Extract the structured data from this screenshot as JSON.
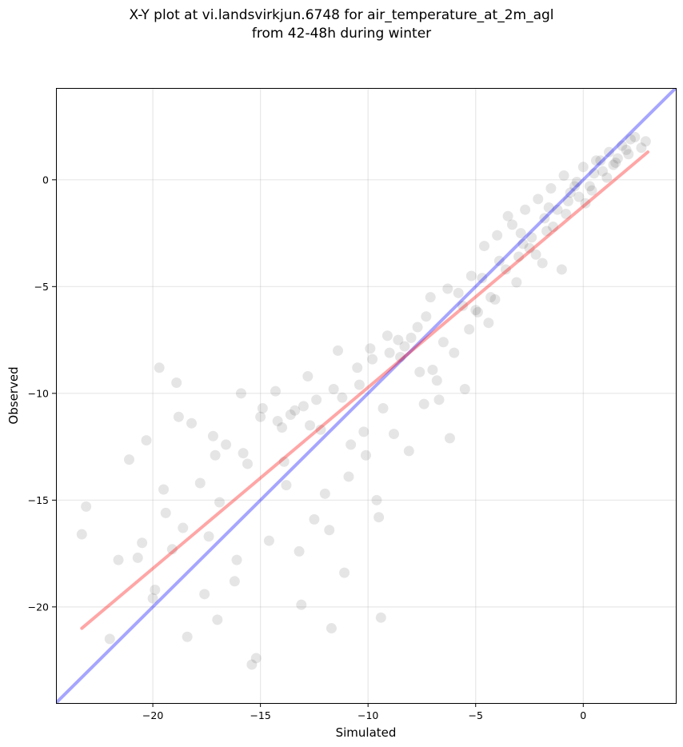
{
  "chart_data": {
    "type": "scatter",
    "title_line1": "X-Y plot at vi.landsvirkjun.6748 for air_temperature_at_2m_agl",
    "title_line2": "from 42-48h during winter",
    "xlabel": "Simulated",
    "ylabel": "Observed",
    "xlim": [
      -24.5,
      4.3
    ],
    "ylim": [
      -24.5,
      4.3
    ],
    "x_ticks": [
      -20,
      -15,
      -10,
      -5,
      0
    ],
    "y_ticks": [
      -20,
      -15,
      -10,
      -5,
      0
    ],
    "x_tick_labels": [
      "−20",
      "−15",
      "−10",
      "−5",
      "0"
    ],
    "y_tick_labels": [
      "−20",
      "−15",
      "−10",
      "−5",
      "0"
    ],
    "grid": true,
    "point_color": "#000000",
    "point_alpha": 0.1,
    "lines": [
      {
        "kind": "identity",
        "color": "#0000ff",
        "alpha": 0.35,
        "x": [
          -24.5,
          4.3
        ],
        "y": [
          -24.5,
          4.3
        ]
      },
      {
        "kind": "regression",
        "color": "#ff0000",
        "alpha": 0.35,
        "x": [
          -23.3,
          3.0
        ],
        "y": [
          -21.0,
          1.3
        ]
      }
    ],
    "x": [
      -23.3,
      -23.1,
      -21.6,
      -21.1,
      -20.7,
      -20.3,
      -19.9,
      -19.7,
      -19.4,
      -19.1,
      -18.9,
      -18.6,
      -18.2,
      -17.8,
      -17.6,
      -17.2,
      -16.9,
      -16.6,
      -16.2,
      -15.9,
      -15.6,
      -15.2,
      -14.9,
      -14.6,
      -14.3,
      -13.9,
      -13.6,
      -13.2,
      -12.8,
      -12.5,
      -12.2,
      -11.8,
      -11.4,
      -11.1,
      -10.8,
      -10.4,
      -10.1,
      -9.8,
      -9.5,
      -9.1,
      -8.8,
      -8.5,
      -8.1,
      -7.7,
      -7.4,
      -7.1,
      -6.8,
      -6.5,
      -6.2,
      -5.8,
      -5.5,
      -5.2,
      -4.9,
      -4.6,
      -4.3,
      -4.0,
      -3.6,
      -3.3,
      -3.0,
      -2.7,
      -2.4,
      -2.1,
      -1.8,
      -1.5,
      -1.2,
      -0.9,
      -0.6,
      -0.3,
      0.0,
      0.3,
      0.6,
      0.9,
      1.2,
      1.5,
      1.8,
      2.1,
      2.4,
      2.7,
      2.9,
      -20.5,
      -18.8,
      -17.4,
      -15.8,
      -14.2,
      -13.0,
      -11.6,
      -10.2,
      -9.0,
      -7.6,
      -6.3,
      -5.0,
      -3.9,
      -2.8,
      -1.7,
      -0.7,
      0.4,
      1.4,
      -19.5,
      -17.1,
      -16.1,
      -13.8,
      -12.4,
      -10.9,
      -9.6,
      -8.3,
      -7.0,
      -5.6,
      -4.4,
      -3.1,
      -1.9,
      -0.8,
      0.5,
      1.6,
      -15.0,
      -12.0,
      -9.3,
      -8.0,
      -6.7,
      -11.2,
      -9.9,
      -10.5,
      -13.4,
      -14.0,
      -12.7,
      -6.0,
      -5.3,
      -4.1,
      -2.5,
      -1.4,
      -0.2,
      0.8,
      2.2,
      -3.5,
      -2.2,
      -1.0,
      0.1,
      1.1,
      2.0,
      -0.4,
      -1.6,
      -2.9,
      -4.7,
      -7.3,
      -8.6,
      -9.4,
      -11.7,
      -13.1,
      -15.4,
      -17.0,
      -18.4,
      -20.0,
      -22.0
    ],
    "y": [
      -16.6,
      -15.3,
      -17.8,
      -13.1,
      -17.7,
      -12.2,
      -19.2,
      -8.8,
      -15.6,
      -17.3,
      -9.5,
      -16.3,
      -11.4,
      -14.2,
      -19.4,
      -12.0,
      -15.1,
      -12.4,
      -18.8,
      -10.0,
      -13.3,
      -22.4,
      -10.7,
      -16.9,
      -9.9,
      -13.2,
      -11.0,
      -17.4,
      -9.2,
      -15.9,
      -11.7,
      -16.4,
      -8.0,
      -18.4,
      -12.4,
      -9.6,
      -12.9,
      -8.4,
      -15.8,
      -7.3,
      -11.9,
      -8.3,
      -12.7,
      -6.9,
      -10.5,
      -5.5,
      -9.4,
      -7.6,
      -12.1,
      -5.3,
      -9.8,
      -4.5,
      -6.2,
      -3.1,
      -5.5,
      -2.6,
      -4.2,
      -2.1,
      -3.6,
      -1.4,
      -2.7,
      -0.9,
      -1.8,
      -0.4,
      -1.4,
      0.2,
      -0.6,
      -0.1,
      0.6,
      -0.3,
      0.9,
      0.4,
      1.3,
      0.8,
      1.6,
      1.2,
      2.0,
      1.5,
      1.8,
      -17.0,
      -11.1,
      -16.7,
      -12.8,
      -11.3,
      -10.6,
      -9.8,
      -11.8,
      -8.1,
      -9.0,
      -5.1,
      -6.1,
      -3.8,
      -3.0,
      -2.4,
      -1.0,
      -0.5,
      0.7,
      -14.5,
      -12.9,
      -17.8,
      -14.3,
      -10.3,
      -13.9,
      -15.0,
      -7.8,
      -8.9,
      -5.9,
      -6.7,
      -4.8,
      -3.9,
      -1.6,
      0.3,
      1.0,
      -11.1,
      -14.7,
      -10.7,
      -7.4,
      -10.3,
      -10.2,
      -7.9,
      -8.8,
      -10.8,
      -11.6,
      -11.5,
      -8.1,
      -7.0,
      -5.6,
      -3.2,
      -2.2,
      -0.8,
      0.9,
      1.9,
      -1.7,
      -3.5,
      -4.2,
      -1.1,
      0.1,
      1.4,
      -0.3,
      -1.3,
      -2.5,
      -4.6,
      -6.4,
      -7.5,
      -20.5,
      -21.0,
      -19.9,
      -22.7,
      -20.6,
      -21.4,
      -19.6,
      -21.5
    ]
  }
}
